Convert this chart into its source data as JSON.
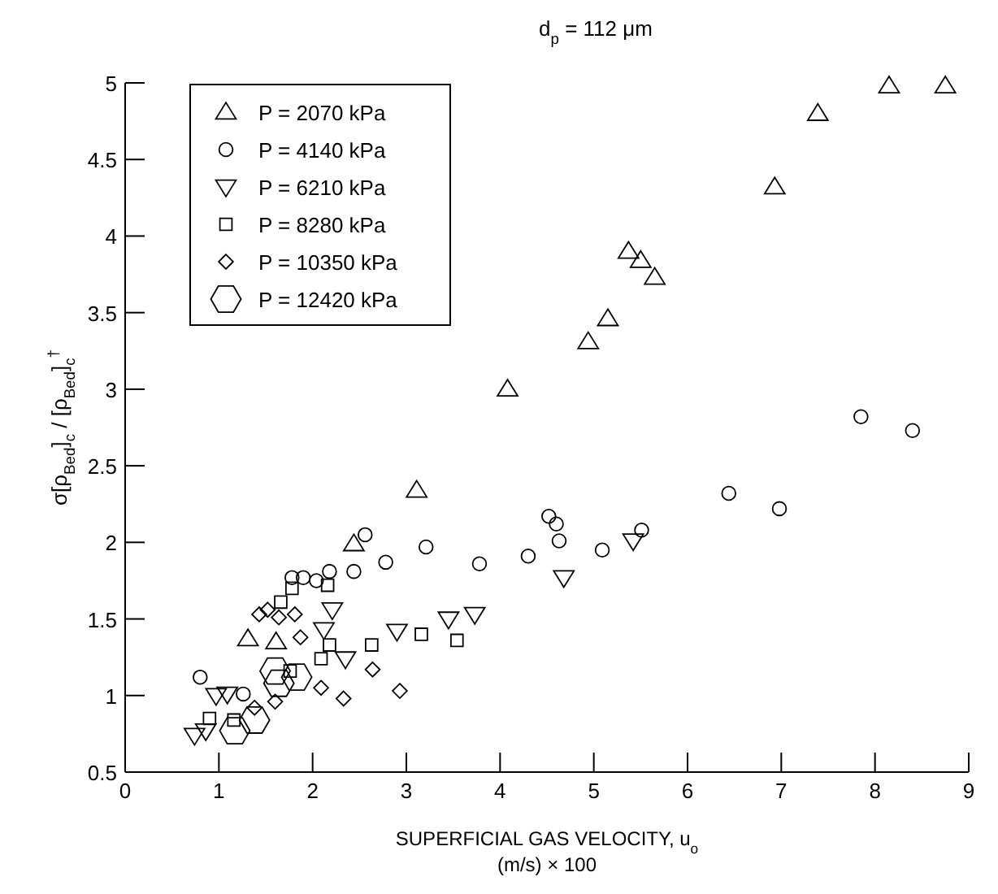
{
  "chart_data": {
    "type": "scatter",
    "title": "d$_{p}$ = 112 μm",
    "xlabel": "SUPERFICIAL GAS VELOCITY, u$_{o}$\n(m/s) × 100",
    "ylabel": "σ[ρ$_{Bed}$]$_{c}$ / [ρ$_{Bed}$]$_{c}$$^{†}$",
    "xlim": [
      0,
      9
    ],
    "ylim": [
      0.5,
      5
    ],
    "xticks": [
      0,
      1,
      2,
      3,
      4,
      5,
      6,
      7,
      8,
      9
    ],
    "yticks": [
      0.5,
      1,
      1.5,
      2,
      2.5,
      3,
      3.5,
      4,
      4.5,
      5
    ],
    "grid": false,
    "legend": "top left",
    "series": [
      {
        "name": "P = 2070 kPa",
        "color": "#000000",
        "marker": "triangle",
        "x": [
          1.31,
          1.61,
          2.44,
          3.11,
          4.08,
          4.94,
          5.15,
          5.37,
          5.5,
          5.65,
          6.93,
          7.39,
          8.15,
          8.75
        ],
        "values": [
          1.37,
          1.35,
          1.99,
          2.34,
          3.0,
          3.31,
          3.46,
          3.9,
          3.84,
          3.73,
          4.32,
          4.8,
          4.98,
          4.98
        ]
      },
      {
        "name": "P = 4140 kPa",
        "color": "#000000",
        "marker": "circle",
        "x": [
          0.8,
          1.26,
          1.78,
          1.9,
          2.04,
          2.18,
          2.44,
          2.56,
          2.78,
          3.21,
          3.78,
          4.3,
          4.52,
          4.6,
          4.63,
          5.09,
          5.51,
          6.44,
          6.98,
          7.85,
          8.4
        ],
        "values": [
          1.12,
          1.01,
          1.77,
          1.77,
          1.75,
          1.81,
          1.81,
          2.05,
          1.87,
          1.97,
          1.86,
          1.91,
          2.17,
          2.12,
          2.01,
          1.95,
          2.08,
          2.32,
          2.22,
          2.82,
          2.73
        ]
      },
      {
        "name": "P = 6210 kPa",
        "color": "#000000",
        "marker": "triangle-down",
        "x": [
          0.74,
          0.86,
          0.97,
          1.09,
          2.12,
          2.21,
          2.35,
          2.9,
          3.45,
          3.73,
          4.68,
          5.42
        ],
        "values": [
          0.74,
          0.77,
          1.0,
          1.01,
          1.43,
          1.56,
          1.24,
          1.42,
          1.5,
          1.53,
          1.77,
          2.01
        ]
      },
      {
        "name": "P = 8280 kPa",
        "color": "#000000",
        "marker": "square",
        "x": [
          0.9,
          1.16,
          1.66,
          1.76,
          1.78,
          2.09,
          2.16,
          2.18,
          2.63,
          3.16,
          3.54
        ],
        "values": [
          0.85,
          0.84,
          1.61,
          1.16,
          1.7,
          1.24,
          1.72,
          1.33,
          1.33,
          1.4,
          1.36
        ]
      },
      {
        "name": "P = 10350 kPa",
        "color": "#000000",
        "marker": "diamond",
        "x": [
          1.38,
          1.43,
          1.52,
          1.6,
          1.64,
          1.81,
          1.87,
          2.09,
          2.33,
          2.64,
          2.93
        ],
        "values": [
          0.92,
          1.53,
          1.56,
          0.96,
          1.51,
          1.53,
          1.38,
          1.05,
          0.98,
          1.17,
          1.03
        ]
      },
      {
        "name": "P = 12420 kPa",
        "color": "#000000",
        "x": [
          1.17,
          1.38,
          1.6,
          1.64,
          1.83
        ],
        "values": [
          0.77,
          0.84,
          1.16,
          1.08,
          1.12
        ]
      }
    ]
  }
}
